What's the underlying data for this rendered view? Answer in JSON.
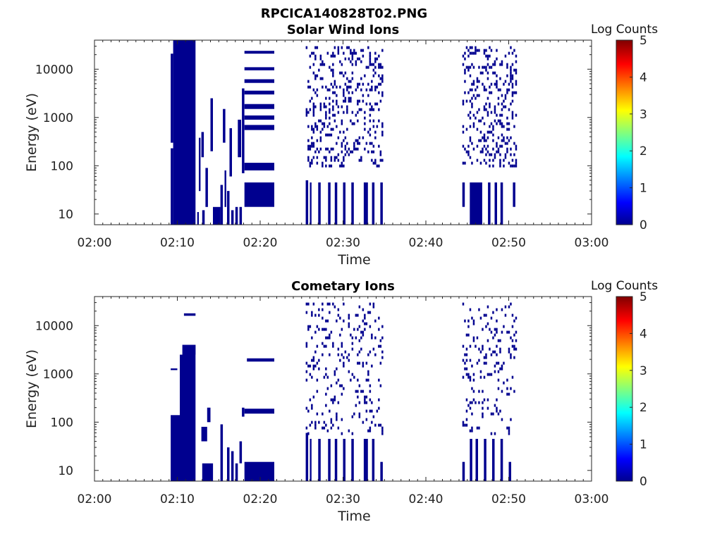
{
  "figure": {
    "title": "RPCICA140828T02.PNG"
  },
  "colors": {
    "data": "#00008f",
    "axis": "#262626",
    "colormap": [
      "#00008f",
      "#0000ff",
      "#00ffff",
      "#ffff00",
      "#ff0000",
      "#800000"
    ]
  },
  "chart_data": [
    {
      "type": "heatmap",
      "title": "Solar Wind Ions",
      "xlabel": "Time",
      "ylabel": "Energy (eV)",
      "x_ticks": [
        "02:00",
        "02:10",
        "02:20",
        "02:30",
        "02:40",
        "02:50",
        "03:00"
      ],
      "xlim_minutes": [
        0,
        60
      ],
      "y_ticks": [
        10,
        100,
        1000,
        10000
      ],
      "y_scale": "log",
      "ylim": [
        6,
        40000
      ],
      "colorbar": {
        "label": "Log Counts",
        "ticks": [
          0,
          1,
          2,
          3,
          4,
          5
        ],
        "range": [
          0,
          5
        ]
      },
      "blocks": [
        {
          "t0": 9.2,
          "t1": 9.5,
          "e0": 6,
          "e1": 230
        },
        {
          "t0": 9.2,
          "t1": 9.5,
          "e0": 300,
          "e1": 21000
        },
        {
          "t0": 9.5,
          "t1": 12.2,
          "e0": 6,
          "e1": 40000
        },
        {
          "t0": 12.4,
          "t1": 12.6,
          "e0": 6,
          "e1": 11
        },
        {
          "t0": 12.6,
          "t1": 12.8,
          "e0": 30,
          "e1": 380
        },
        {
          "t0": 12.9,
          "t1": 13.2,
          "e0": 150,
          "e1": 500
        },
        {
          "t0": 13.0,
          "t1": 13.3,
          "e0": 6,
          "e1": 12
        },
        {
          "t0": 13.4,
          "t1": 13.7,
          "e0": 14,
          "e1": 90
        },
        {
          "t0": 14.0,
          "t1": 14.3,
          "e0": 200,
          "e1": 2500
        },
        {
          "t0": 14.3,
          "t1": 15.2,
          "e0": 6,
          "e1": 14
        },
        {
          "t0": 15.2,
          "t1": 15.5,
          "e0": 6,
          "e1": 40
        },
        {
          "t0": 15.5,
          "t1": 15.8,
          "e0": 300,
          "e1": 1500
        },
        {
          "t0": 15.7,
          "t1": 15.9,
          "e0": 14,
          "e1": 80
        },
        {
          "t0": 16.0,
          "t1": 16.3,
          "e0": 6,
          "e1": 30
        },
        {
          "t0": 16.3,
          "t1": 16.6,
          "e0": 60,
          "e1": 600
        },
        {
          "t0": 16.5,
          "t1": 16.8,
          "e0": 6,
          "e1": 12
        },
        {
          "t0": 17.0,
          "t1": 17.3,
          "e0": 6,
          "e1": 14
        },
        {
          "t0": 17.3,
          "t1": 17.7,
          "e0": 150,
          "e1": 900
        },
        {
          "t0": 17.5,
          "t1": 17.8,
          "e0": 6,
          "e1": 14
        },
        {
          "t0": 17.8,
          "t1": 18.1,
          "e0": 70,
          "e1": 4000
        },
        {
          "t0": 18.1,
          "t1": 21.7,
          "e0": 14,
          "e1": 45
        },
        {
          "t0": 18.1,
          "t1": 21.7,
          "e0": 80,
          "e1": 115
        },
        {
          "t0": 18.1,
          "t1": 21.7,
          "e0": 550,
          "e1": 700
        },
        {
          "t0": 18.1,
          "t1": 21.7,
          "e0": 900,
          "e1": 1100
        },
        {
          "t0": 18.1,
          "t1": 21.7,
          "e0": 1500,
          "e1": 1900
        },
        {
          "t0": 18.1,
          "t1": 21.7,
          "e0": 3000,
          "e1": 3600
        },
        {
          "t0": 18.1,
          "t1": 21.7,
          "e0": 5200,
          "e1": 6200
        },
        {
          "t0": 18.1,
          "t1": 21.7,
          "e0": 9500,
          "e1": 11000
        },
        {
          "t0": 18.1,
          "t1": 21.7,
          "e0": 21000,
          "e1": 24000
        },
        {
          "t0": 25.5,
          "t1": 25.8,
          "e0": 6,
          "e1": 50
        },
        {
          "t0": 26.0,
          "t1": 26.2,
          "e0": 6,
          "e1": 45
        },
        {
          "t0": 27.0,
          "t1": 27.3,
          "e0": 6,
          "e1": 45
        },
        {
          "t0": 28.2,
          "t1": 28.5,
          "e0": 6,
          "e1": 45
        },
        {
          "t0": 29.0,
          "t1": 29.3,
          "e0": 6,
          "e1": 45
        },
        {
          "t0": 30.0,
          "t1": 30.3,
          "e0": 6,
          "e1": 45
        },
        {
          "t0": 31.0,
          "t1": 31.3,
          "e0": 6,
          "e1": 45
        },
        {
          "t0": 32.5,
          "t1": 33.0,
          "e0": 6,
          "e1": 45
        },
        {
          "t0": 33.5,
          "t1": 33.8,
          "e0": 6,
          "e1": 45
        },
        {
          "t0": 34.5,
          "t1": 34.8,
          "e0": 6,
          "e1": 45
        },
        {
          "t0": 25.5,
          "t1": 34.8,
          "e0": 100,
          "e1": 30000,
          "speckle": 0.22
        },
        {
          "t0": 44.4,
          "t1": 44.7,
          "e0": 14,
          "e1": 45
        },
        {
          "t0": 45.3,
          "t1": 46.8,
          "e0": 6,
          "e1": 45
        },
        {
          "t0": 47.5,
          "t1": 47.8,
          "e0": 6,
          "e1": 45
        },
        {
          "t0": 48.3,
          "t1": 48.6,
          "e0": 6,
          "e1": 45
        },
        {
          "t0": 49.0,
          "t1": 49.3,
          "e0": 6,
          "e1": 45
        },
        {
          "t0": 50.5,
          "t1": 50.8,
          "e0": 14,
          "e1": 45
        },
        {
          "t0": 44.4,
          "t1": 50.8,
          "e0": 100,
          "e1": 30000,
          "speckle": 0.22
        }
      ]
    },
    {
      "type": "heatmap",
      "title": "Cometary Ions",
      "xlabel": "Time",
      "ylabel": "Energy (eV)",
      "x_ticks": [
        "02:00",
        "02:10",
        "02:20",
        "02:30",
        "02:40",
        "02:50",
        "03:00"
      ],
      "xlim_minutes": [
        0,
        60
      ],
      "y_ticks": [
        10,
        100,
        1000,
        10000
      ],
      "y_scale": "log",
      "ylim": [
        6,
        40000
      ],
      "colorbar": {
        "label": "Log Counts",
        "ticks": [
          0,
          1,
          2,
          3,
          4,
          5
        ],
        "range": [
          0,
          5
        ]
      },
      "blocks": [
        {
          "t0": 9.2,
          "t1": 10.3,
          "e0": 6,
          "e1": 140
        },
        {
          "t0": 9.2,
          "t1": 10.0,
          "e0": 1200,
          "e1": 1300
        },
        {
          "t0": 10.3,
          "t1": 12.2,
          "e0": 6,
          "e1": 2500
        },
        {
          "t0": 10.6,
          "t1": 12.2,
          "e0": 2500,
          "e1": 4000
        },
        {
          "t0": 10.8,
          "t1": 12.2,
          "e0": 16000,
          "e1": 18000
        },
        {
          "t0": 13.0,
          "t1": 14.3,
          "e0": 6,
          "e1": 14
        },
        {
          "t0": 12.9,
          "t1": 13.6,
          "e0": 40,
          "e1": 80
        },
        {
          "t0": 13.6,
          "t1": 14.0,
          "e0": 100,
          "e1": 200
        },
        {
          "t0": 15.2,
          "t1": 15.5,
          "e0": 6,
          "e1": 40
        },
        {
          "t0": 15.2,
          "t1": 15.5,
          "e0": 40,
          "e1": 90
        },
        {
          "t0": 16.0,
          "t1": 16.3,
          "e0": 6,
          "e1": 30
        },
        {
          "t0": 16.5,
          "t1": 16.8,
          "e0": 6,
          "e1": 25
        },
        {
          "t0": 17.0,
          "t1": 17.3,
          "e0": 6,
          "e1": 14
        },
        {
          "t0": 17.5,
          "t1": 17.8,
          "e0": 14,
          "e1": 40
        },
        {
          "t0": 17.8,
          "t1": 18.1,
          "e0": 130,
          "e1": 200
        },
        {
          "t0": 18.1,
          "t1": 21.7,
          "e0": 6,
          "e1": 15
        },
        {
          "t0": 18.1,
          "t1": 21.7,
          "e0": 150,
          "e1": 190
        },
        {
          "t0": 18.4,
          "t1": 21.7,
          "e0": 1800,
          "e1": 2100
        },
        {
          "t0": 25.5,
          "t1": 25.8,
          "e0": 6,
          "e1": 60
        },
        {
          "t0": 26.0,
          "t1": 26.2,
          "e0": 6,
          "e1": 45
        },
        {
          "t0": 27.0,
          "t1": 27.3,
          "e0": 6,
          "e1": 45
        },
        {
          "t0": 28.2,
          "t1": 28.5,
          "e0": 6,
          "e1": 45
        },
        {
          "t0": 29.0,
          "t1": 29.3,
          "e0": 6,
          "e1": 45
        },
        {
          "t0": 30.0,
          "t1": 30.3,
          "e0": 6,
          "e1": 45
        },
        {
          "t0": 31.0,
          "t1": 31.3,
          "e0": 6,
          "e1": 45
        },
        {
          "t0": 32.5,
          "t1": 33.0,
          "e0": 6,
          "e1": 45
        },
        {
          "t0": 33.5,
          "t1": 33.8,
          "e0": 6,
          "e1": 45
        },
        {
          "t0": 34.5,
          "t1": 34.8,
          "e0": 6,
          "e1": 15
        },
        {
          "t0": 25.5,
          "t1": 34.8,
          "e0": 60,
          "e1": 30000,
          "speckle": 0.12
        },
        {
          "t0": 44.4,
          "t1": 44.7,
          "e0": 6,
          "e1": 15
        },
        {
          "t0": 45.3,
          "t1": 45.6,
          "e0": 6,
          "e1": 45
        },
        {
          "t0": 46.0,
          "t1": 46.3,
          "e0": 6,
          "e1": 45
        },
        {
          "t0": 47.0,
          "t1": 47.3,
          "e0": 6,
          "e1": 45
        },
        {
          "t0": 48.0,
          "t1": 48.3,
          "e0": 6,
          "e1": 45
        },
        {
          "t0": 49.0,
          "t1": 49.3,
          "e0": 6,
          "e1": 45
        },
        {
          "t0": 50.0,
          "t1": 50.3,
          "e0": 6,
          "e1": 15
        },
        {
          "t0": 44.4,
          "t1": 50.8,
          "e0": 60,
          "e1": 30000,
          "speckle": 0.12
        }
      ]
    }
  ]
}
